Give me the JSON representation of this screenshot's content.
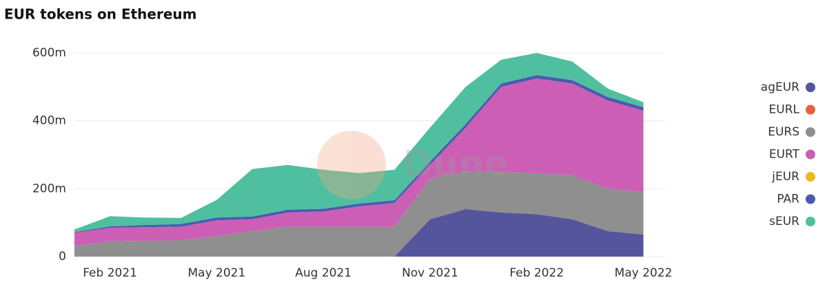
{
  "chart_data": {
    "type": "stacked-area",
    "title": "EUR tokens on Ethereum",
    "watermark": "Dune",
    "x": [
      "Jan 2021",
      "Feb 2021",
      "Mar 2021",
      "Apr 2021",
      "May 2021",
      "Jun 2021",
      "Jul 2021",
      "Aug 2021",
      "Sep 2021",
      "Oct 2021",
      "Nov 2021",
      "Dec 2021",
      "Jan 2022",
      "Feb 2022",
      "Mar 2022",
      "Apr 2022",
      "May 2022"
    ],
    "xticks": [
      "Feb 2021",
      "May 2021",
      "Aug 2021",
      "Nov 2021",
      "Feb 2022",
      "May 2022"
    ],
    "ylim": [
      0,
      600000000
    ],
    "yticks": [
      0,
      {
        "value": 200000000,
        "label": "200m"
      },
      {
        "value": 400000000,
        "label": "400m"
      },
      {
        "value": 600000000,
        "label": "600m"
      }
    ],
    "grid": true,
    "legend": "right",
    "series": [
      {
        "name": "agEUR",
        "color": "#55559e",
        "values": [
          0,
          0,
          0,
          0,
          0,
          0,
          0,
          0,
          0,
          0,
          110000000,
          140000000,
          130000000,
          125000000,
          110000000,
          75000000,
          65000000
        ]
      },
      {
        "name": "EURL",
        "color": "#e8613c",
        "values": [
          0,
          0,
          0,
          0,
          0,
          0,
          0,
          0,
          0,
          0,
          0,
          0,
          0,
          0,
          0,
          0,
          0
        ]
      },
      {
        "name": "EURS",
        "color": "#8f8f8f",
        "values": [
          32000000,
          45000000,
          47000000,
          48000000,
          60000000,
          75000000,
          88000000,
          88000000,
          88000000,
          88000000,
          120000000,
          110000000,
          120000000,
          120000000,
          130000000,
          125000000,
          125000000
        ]
      },
      {
        "name": "EURT",
        "color": "#cc5fb5",
        "values": [
          38000000,
          40000000,
          40000000,
          40000000,
          47000000,
          35000000,
          42000000,
          45000000,
          60000000,
          70000000,
          40000000,
          130000000,
          250000000,
          280000000,
          270000000,
          260000000,
          240000000
        ]
      },
      {
        "name": "jEUR",
        "color": "#f0b818",
        "values": [
          0,
          0,
          0,
          0,
          0,
          0,
          0,
          0,
          0,
          0,
          0,
          0,
          0,
          0,
          0,
          0,
          0
        ]
      },
      {
        "name": "PAR",
        "color": "#4a5ab0",
        "values": [
          2000000,
          4000000,
          6000000,
          8000000,
          8000000,
          8000000,
          8000000,
          8000000,
          8000000,
          8000000,
          10000000,
          10000000,
          10000000,
          10000000,
          10000000,
          10000000,
          10000000
        ]
      },
      {
        "name": "sEUR",
        "color": "#4fbf9f",
        "values": [
          8000000,
          30000000,
          22000000,
          18000000,
          52000000,
          140000000,
          132000000,
          115000000,
          90000000,
          90000000,
          100000000,
          110000000,
          70000000,
          65000000,
          55000000,
          25000000,
          15000000
        ]
      }
    ]
  }
}
